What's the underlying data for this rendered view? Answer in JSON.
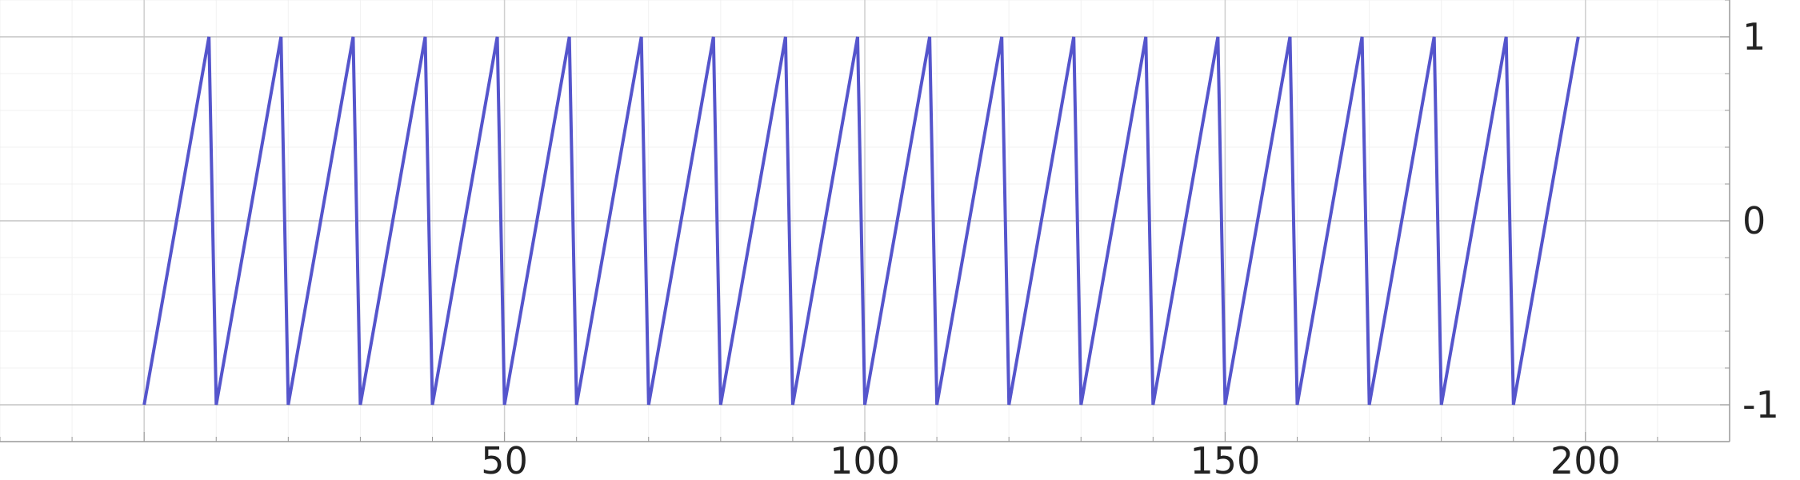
{
  "chart_data": {
    "type": "line",
    "title": "",
    "xlabel": "",
    "ylabel": "",
    "xlim": [
      -20,
      220
    ],
    "ylim": [
      -1.2,
      1.2
    ],
    "x_ticks": [
      {
        "value": 50,
        "label": "50"
      },
      {
        "value": 100,
        "label": "100"
      },
      {
        "value": 150,
        "label": "150"
      },
      {
        "value": 200,
        "label": "200"
      }
    ],
    "y_ticks": [
      {
        "value": 1,
        "label": "1"
      },
      {
        "value": 0,
        "label": "0"
      },
      {
        "value": -1,
        "label": "-1"
      }
    ],
    "y_axis_position": "right",
    "grid": true,
    "legend": "none",
    "series": [
      {
        "color": "#5555cc",
        "x": [
          0,
          9,
          10,
          19,
          20,
          29,
          30,
          39,
          40,
          49,
          50,
          59,
          60,
          69,
          70,
          79,
          80,
          89,
          90,
          99,
          100,
          109,
          110,
          119,
          120,
          129,
          130,
          139,
          140,
          149,
          150,
          159,
          160,
          169,
          170,
          179,
          180,
          189,
          190,
          199
        ],
        "y": [
          -1,
          1,
          -1,
          1,
          -1,
          1,
          -1,
          1,
          -1,
          1,
          -1,
          1,
          -1,
          1,
          -1,
          1,
          -1,
          1,
          -1,
          1,
          -1,
          1,
          -1,
          1,
          -1,
          1,
          -1,
          1,
          -1,
          1,
          -1,
          1,
          -1,
          1,
          -1,
          1,
          -1,
          1,
          -1,
          1
        ]
      }
    ]
  }
}
